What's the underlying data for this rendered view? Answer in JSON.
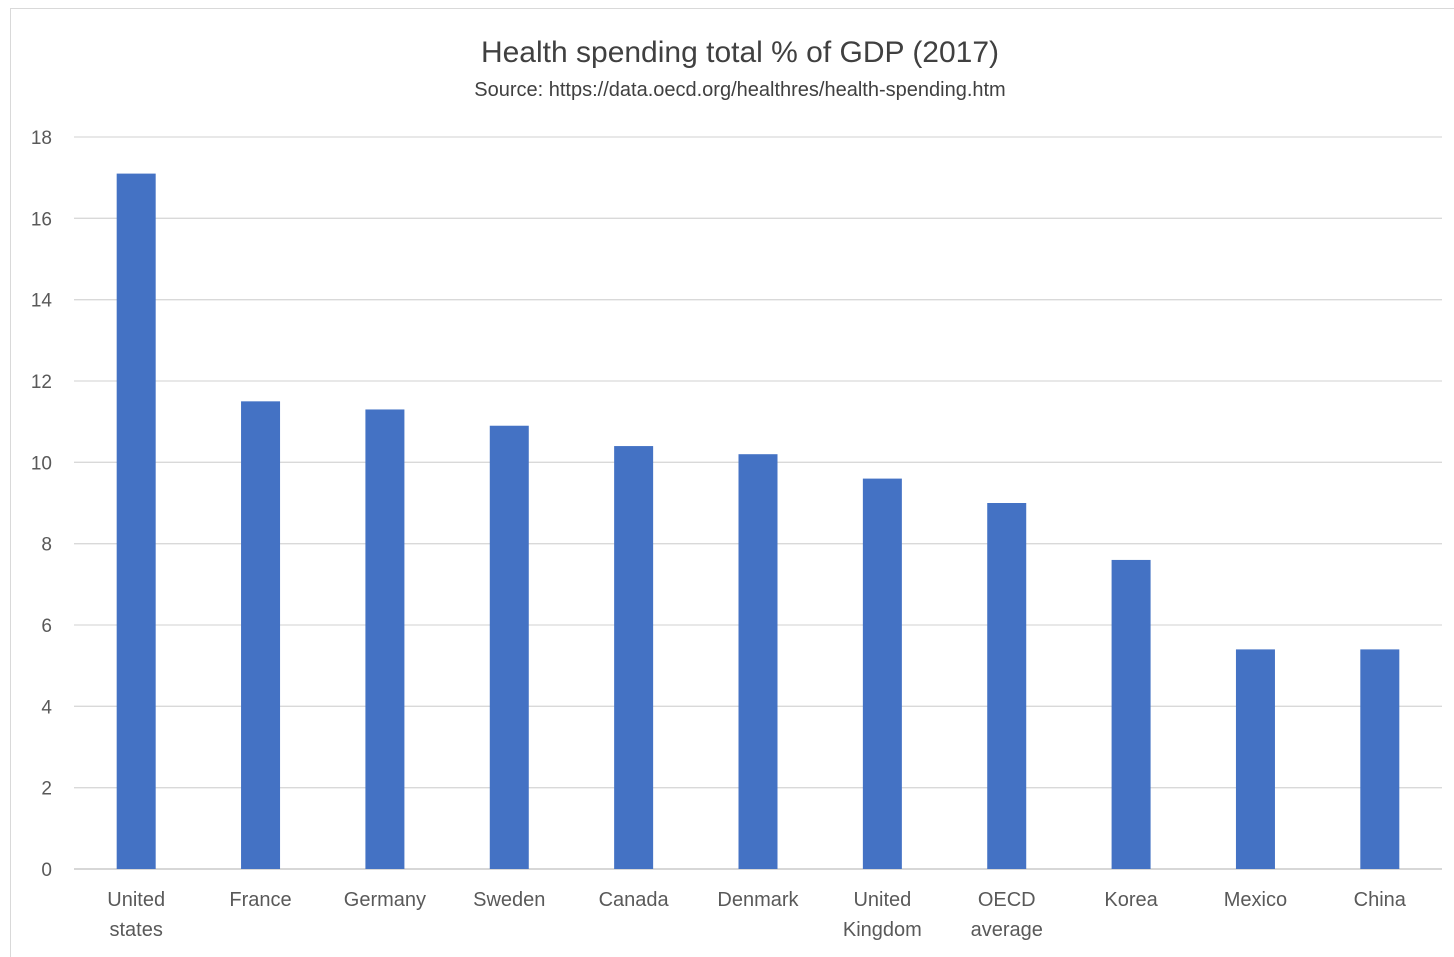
{
  "chart_data": {
    "type": "bar",
    "title": "Health spending total % of GDP (2017)",
    "subtitle": "Source: https://data.oecd.org/healthres/health-spending.htm",
    "xlabel": "",
    "ylabel": "",
    "ylim": [
      0,
      18
    ],
    "yticks": [
      0,
      2,
      4,
      6,
      8,
      10,
      12,
      14,
      16,
      18
    ],
    "grid": true,
    "legend": "none",
    "categories": [
      [
        "United",
        "states"
      ],
      [
        "France"
      ],
      [
        "Germany"
      ],
      [
        "Sweden"
      ],
      [
        "Canada"
      ],
      [
        "Denmark"
      ],
      [
        "United",
        "Kingdom"
      ],
      [
        "OECD",
        "average"
      ],
      [
        "Korea"
      ],
      [
        "Mexico"
      ],
      [
        "China"
      ]
    ],
    "values": [
      17.1,
      11.5,
      11.3,
      10.9,
      10.4,
      10.2,
      9.6,
      9.0,
      7.6,
      5.4,
      5.4
    ],
    "colors": {
      "bar": "#4472c4",
      "grid": "#d9d9d9",
      "text": "#595959",
      "title": "#404040"
    }
  }
}
